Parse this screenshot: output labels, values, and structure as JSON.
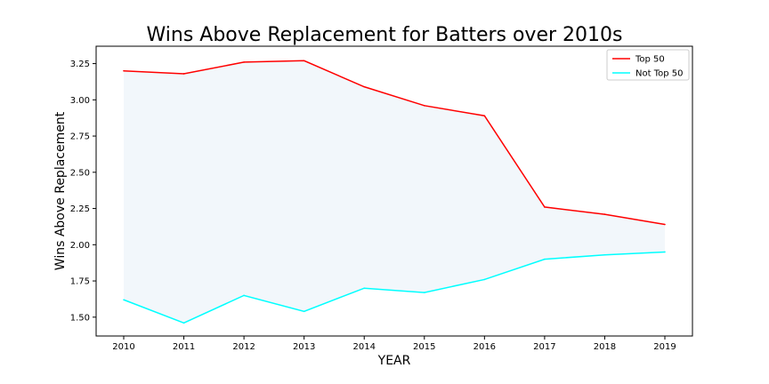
{
  "chart_data": {
    "type": "line",
    "title": "Wins Above Replacement for Batters over 2010s",
    "xlabel": "YEAR",
    "ylabel": "Wins Above Replacement",
    "x": [
      "2010",
      "2011",
      "2012",
      "2013",
      "2014",
      "2015",
      "2016",
      "2017",
      "2018",
      "2019"
    ],
    "ylim": [
      1.37,
      3.37
    ],
    "yticks": [
      "1.50",
      "1.75",
      "2.00",
      "2.25",
      "2.50",
      "2.75",
      "3.00",
      "3.25"
    ],
    "series": [
      {
        "name": "Top 50",
        "color": "#ff0000",
        "values": [
          3.2,
          3.18,
          3.26,
          3.27,
          3.09,
          2.96,
          2.89,
          2.26,
          2.21,
          2.14
        ]
      },
      {
        "name": "Not Top 50",
        "color": "#00ffff",
        "values": [
          1.62,
          1.46,
          1.65,
          1.54,
          1.7,
          1.67,
          1.76,
          1.9,
          1.93,
          1.95
        ]
      }
    ],
    "fill_between": {
      "color": "#f2f7fb"
    },
    "legend_position": "top-right",
    "grid": false
  }
}
